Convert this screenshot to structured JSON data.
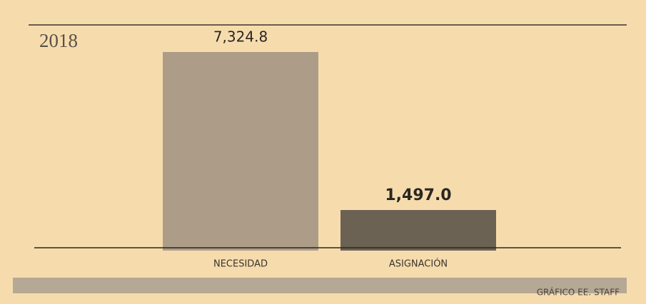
{
  "chart_data": {
    "type": "bar",
    "title": "2018",
    "categories": [
      "NECESIDAD",
      "ASIGNACIÓN"
    ],
    "values": [
      7324.8,
      1497.0
    ],
    "value_labels": [
      "7,324.8",
      "1,497.0"
    ],
    "colors": [
      "#ad9d88",
      "#6c6254"
    ],
    "source": "GRÁFICO EE. STAFF"
  }
}
